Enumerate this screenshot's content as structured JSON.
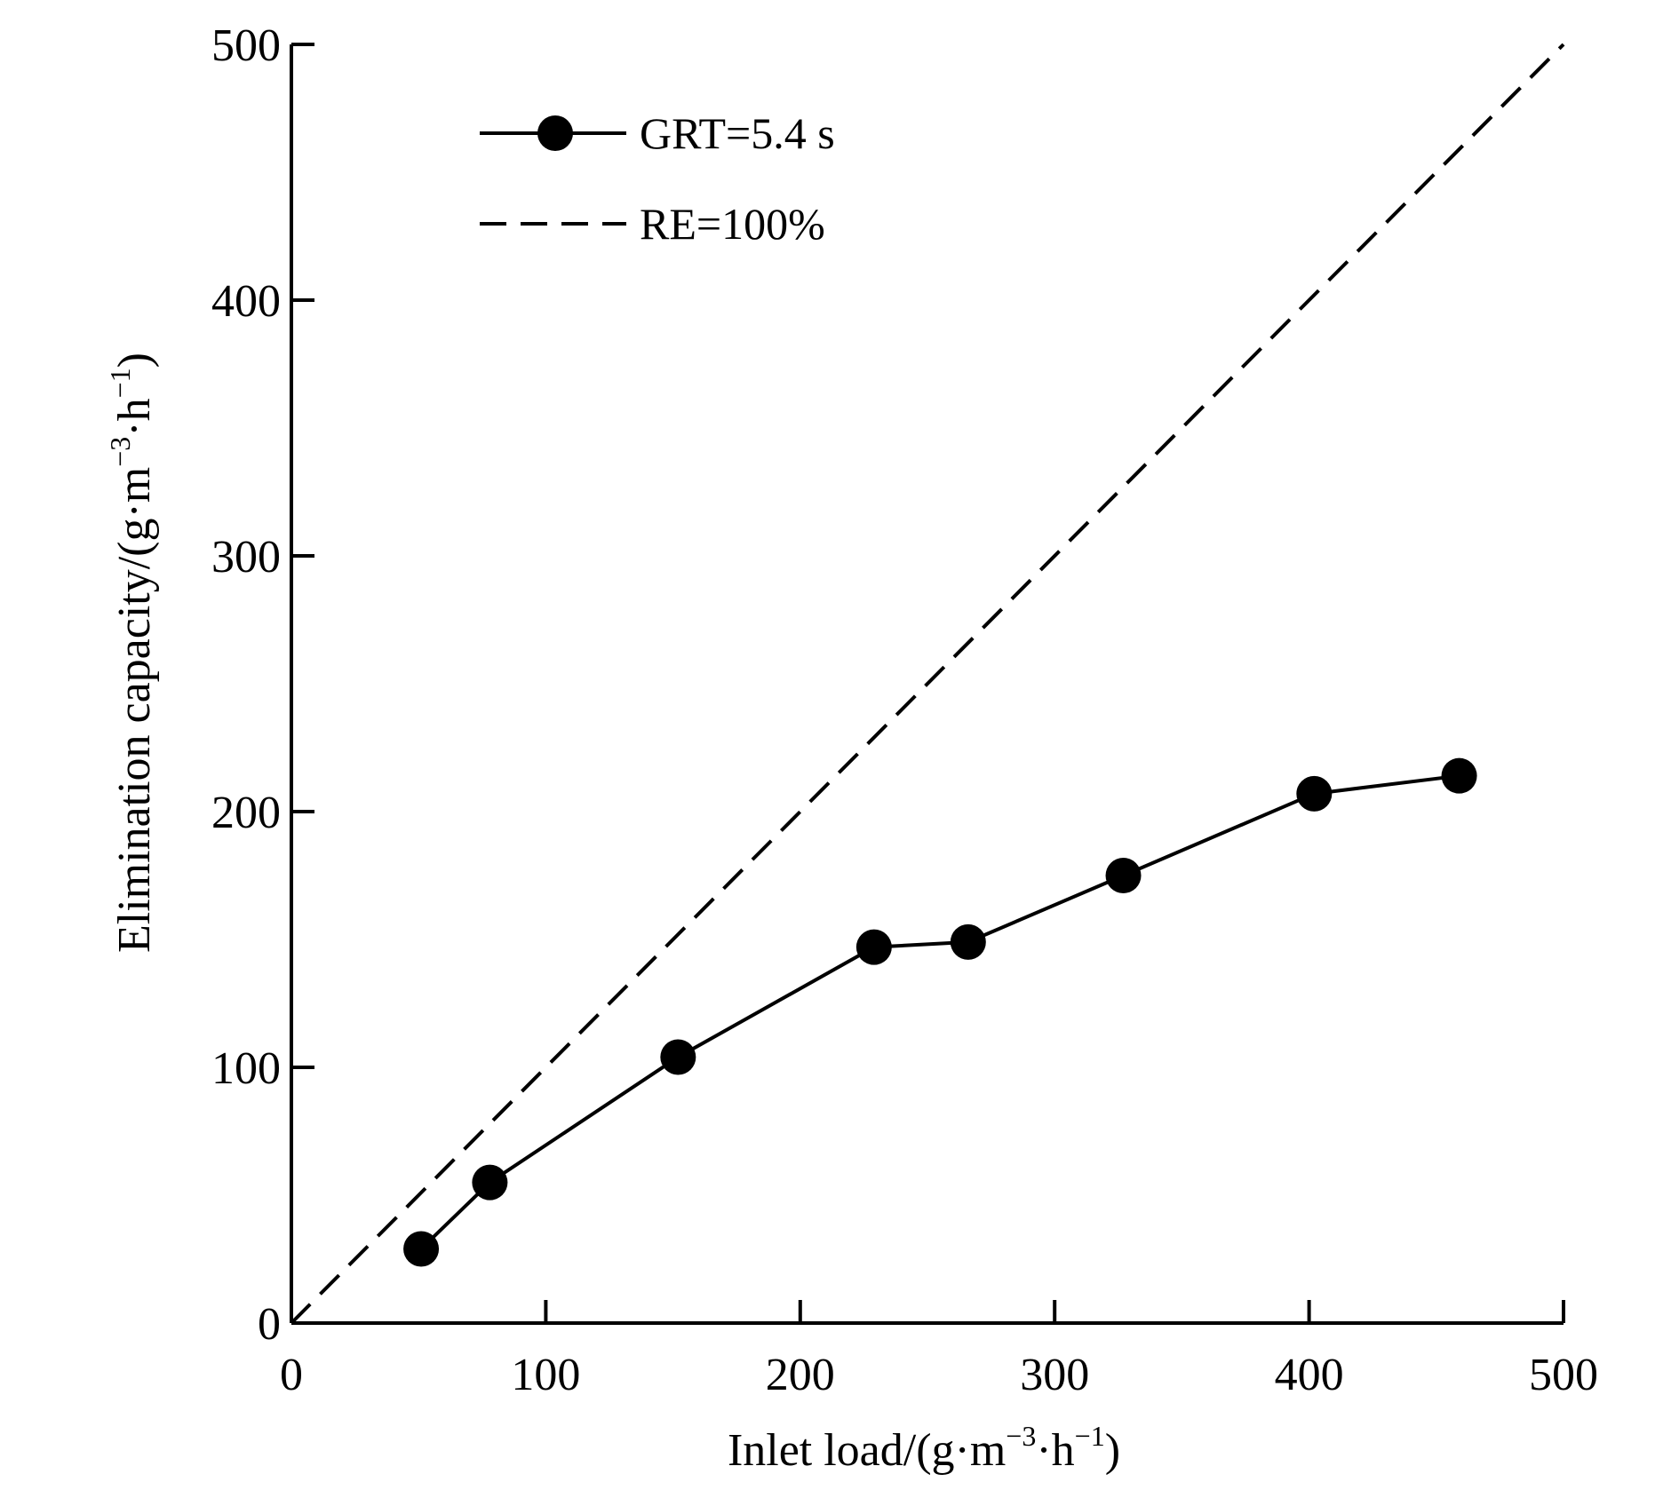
{
  "chart_data": {
    "type": "line",
    "title": "",
    "xlabel": {
      "base": "Inlet load/(g·m",
      "sup1": "−3",
      "mid": "·h",
      "sup2": "−1",
      "end": ")"
    },
    "ylabel": {
      "base": "Elimination capacity/(g·m",
      "sup1": "−3",
      "mid": "·h",
      "sup2": "−1",
      "end": ")"
    },
    "xlim": [
      0,
      500
    ],
    "ylim": [
      0,
      500
    ],
    "xticks": [
      0,
      100,
      200,
      300,
      400,
      500
    ],
    "yticks": [
      0,
      100,
      200,
      300,
      400,
      500
    ],
    "xtick_labels": [
      "0",
      "100",
      "200",
      "300",
      "400",
      "500"
    ],
    "ytick_labels": [
      "0",
      "100",
      "200",
      "300",
      "400",
      "500"
    ],
    "grid": false,
    "legend_position": "top-left",
    "series": [
      {
        "name": "GRT=5.4 s",
        "style": "solid-line-filled-circles",
        "x": [
          51,
          78,
          152,
          229,
          266,
          327,
          402,
          459
        ],
        "y": [
          29,
          55,
          104,
          147,
          149,
          175,
          207,
          214
        ]
      },
      {
        "name": "RE=100%",
        "style": "dashed-line",
        "x": [
          0,
          500
        ],
        "y": [
          0,
          500
        ]
      }
    ]
  }
}
